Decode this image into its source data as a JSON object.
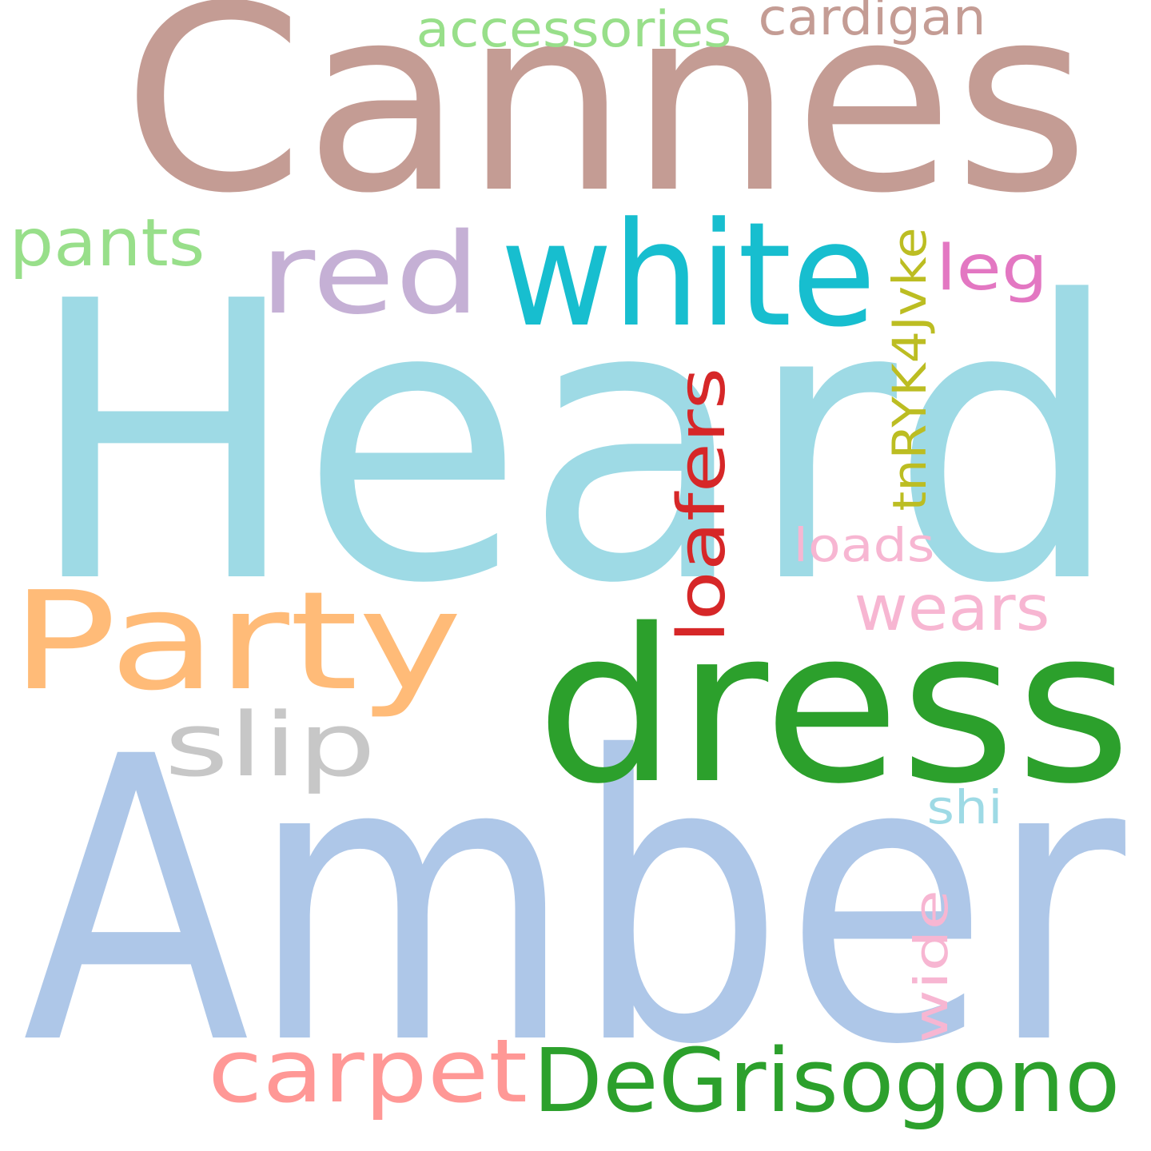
{
  "background": "#ffffff",
  "words": [
    {
      "id": "cannes",
      "text": "Cannes",
      "color": "#c49c94",
      "rotated": false
    },
    {
      "id": "heard",
      "text": "Heard",
      "color": "#9edae5",
      "rotated": false
    },
    {
      "id": "amber",
      "text": "Amber",
      "color": "#aec7e8",
      "rotated": false
    },
    {
      "id": "dress",
      "text": "dress",
      "color": "#2ca02c",
      "rotated": false
    },
    {
      "id": "white",
      "text": "white",
      "color": "#17becf",
      "rotated": false
    },
    {
      "id": "party",
      "text": "Party",
      "color": "#ffbb78",
      "rotated": false
    },
    {
      "id": "red",
      "text": "red",
      "color": "#c5b0d5",
      "rotated": false
    },
    {
      "id": "slip",
      "text": "slip",
      "color": "#c7c7c7",
      "rotated": false
    },
    {
      "id": "carpet",
      "text": "carpet",
      "color": "#ff9896",
      "rotated": false
    },
    {
      "id": "degrisogono",
      "text": "DeGrisogono",
      "color": "#2ca02c",
      "rotated": false
    },
    {
      "id": "loafers",
      "text": "loafers",
      "color": "#d62728",
      "rotated": true
    },
    {
      "id": "pants",
      "text": "pants",
      "color": "#98df8a",
      "rotated": false
    },
    {
      "id": "accessories",
      "text": "accessories",
      "color": "#98df8a",
      "rotated": false
    },
    {
      "id": "cardigan",
      "text": "cardigan",
      "color": "#c49c94",
      "rotated": false
    },
    {
      "id": "tnryk4jvke",
      "text": "tnRYK4Jvke",
      "color": "#bcbd22",
      "rotated": true
    },
    {
      "id": "leg",
      "text": "leg",
      "color": "#e377c2",
      "rotated": false
    },
    {
      "id": "wears",
      "text": "wears",
      "color": "#f7b6d2",
      "rotated": false
    },
    {
      "id": "loads",
      "text": "loads",
      "color": "#f7b6d2",
      "rotated": false
    },
    {
      "id": "wide",
      "text": "wide",
      "color": "#f7b6d2",
      "rotated": true
    },
    {
      "id": "shi",
      "text": "shi",
      "color": "#9edae5",
      "rotated": false
    }
  ]
}
